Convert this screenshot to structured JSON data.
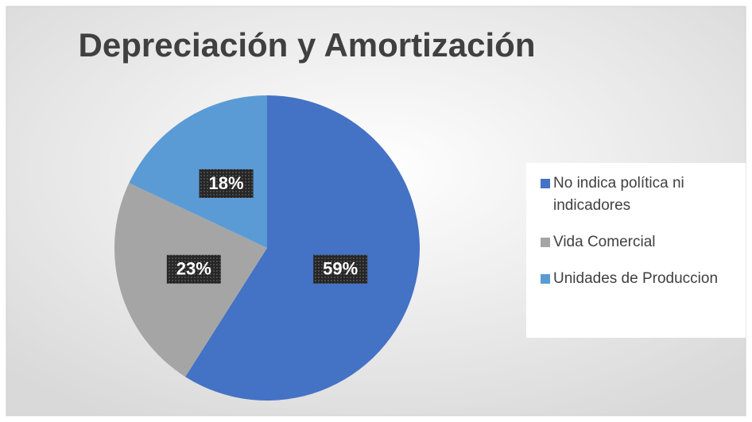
{
  "chart_data": {
    "type": "pie",
    "title": "Depreciación y Amortización",
    "categories": [
      "No indica política ni indicadores",
      "Vida Comercial",
      "Unidades de Produccion"
    ],
    "values": [
      59,
      23,
      18
    ],
    "value_labels": [
      "59%",
      "23%",
      "18%"
    ],
    "colors": [
      "#4472c4",
      "#a5a5a5",
      "#5b9bd5"
    ],
    "legend": "right"
  }
}
